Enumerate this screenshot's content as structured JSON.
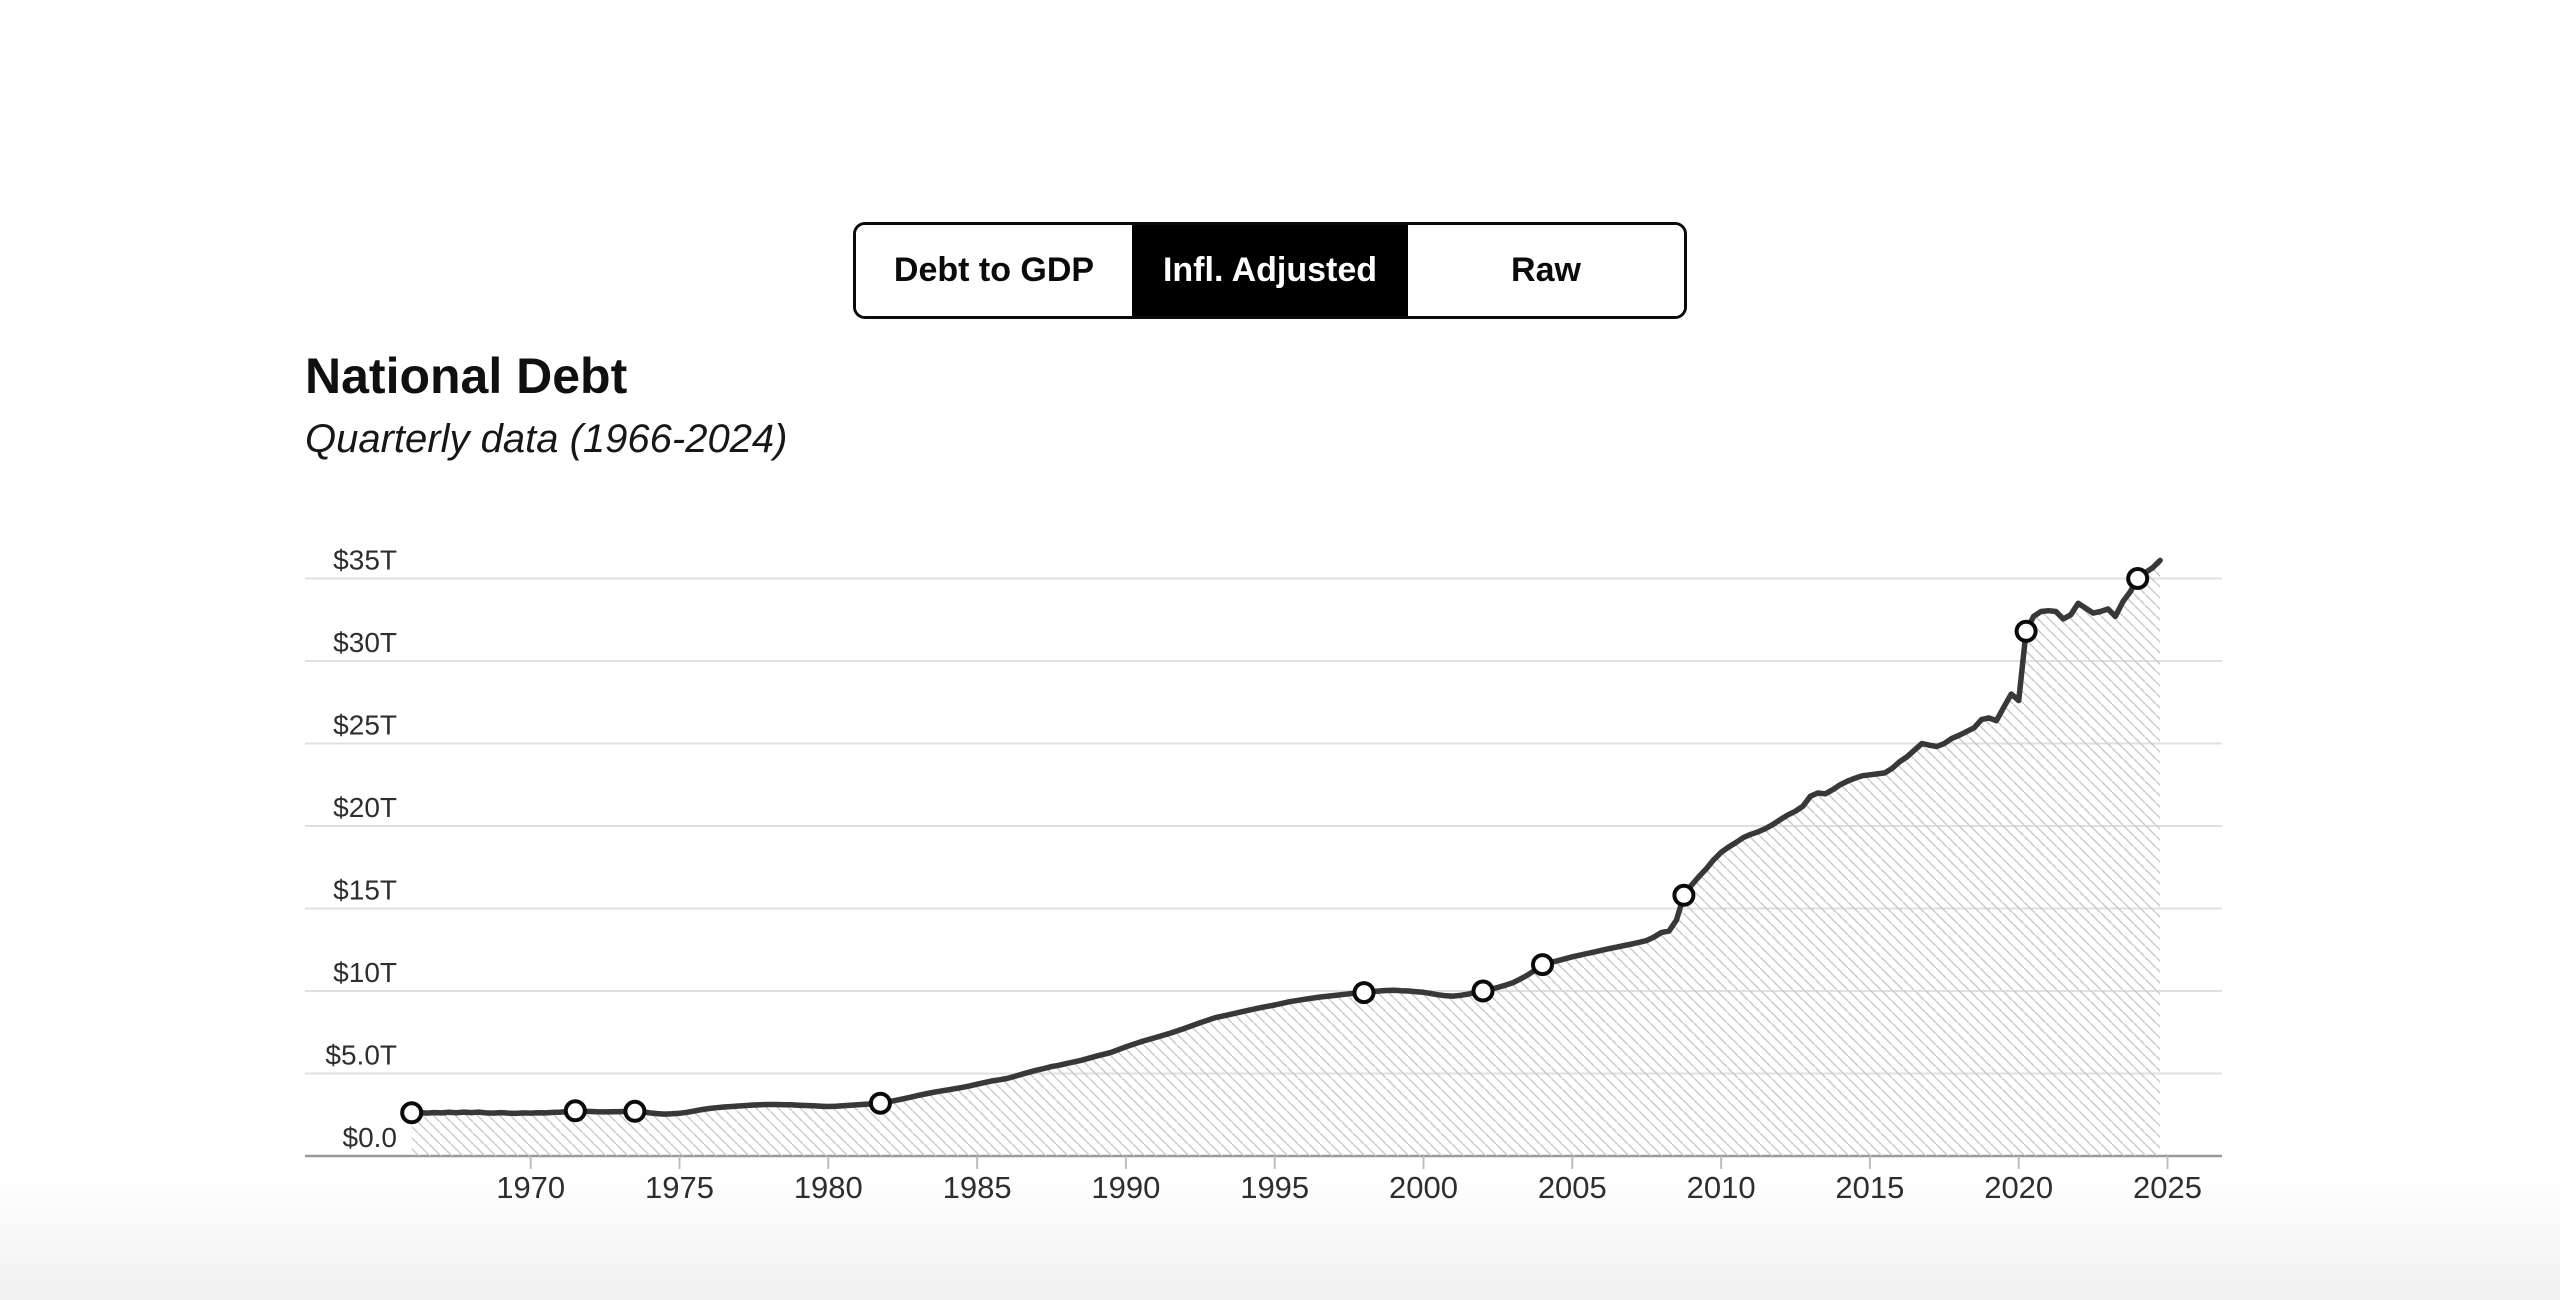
{
  "page": {
    "background": "#ffffff"
  },
  "toggle": {
    "items": [
      {
        "label": "Debt to GDP",
        "active": false
      },
      {
        "label": "Infl. Adjusted",
        "active": true
      },
      {
        "label": "Raw",
        "active": false
      }
    ]
  },
  "header": {
    "title": "National Debt",
    "subtitle": "Quarterly data (1966-2024)"
  },
  "chart_data": {
    "type": "area",
    "title": "National Debt",
    "subtitle": "Quarterly data (1966-2024)",
    "unit": "trillion USD (inflation adjusted)",
    "grid": true,
    "legend": false,
    "x_axis": {
      "tick_years": [
        1970,
        1975,
        1980,
        1985,
        1990,
        1995,
        2000,
        2005,
        2010,
        2015,
        2020,
        2025
      ],
      "range": [
        1966,
        2025.5
      ]
    },
    "y_axis": {
      "ticks": [
        {
          "value": 0,
          "label": "$0.0"
        },
        {
          "value": 5,
          "label": "$5.0T"
        },
        {
          "value": 10,
          "label": "$10T"
        },
        {
          "value": 15,
          "label": "$15T"
        },
        {
          "value": 20,
          "label": "$20T"
        },
        {
          "value": 25,
          "label": "$25T"
        },
        {
          "value": 30,
          "label": "$30T"
        },
        {
          "value": 35,
          "label": "$35T"
        }
      ],
      "range": [
        0,
        36.5
      ]
    },
    "series": [
      {
        "name": "National debt (inflation adjusted, $T)",
        "points": [
          [
            1966,
            2.62
          ],
          [
            1966.25,
            2.64
          ],
          [
            1966.5,
            2.6
          ],
          [
            1966.75,
            2.63
          ],
          [
            1967,
            2.61
          ],
          [
            1967.25,
            2.65
          ],
          [
            1967.5,
            2.62
          ],
          [
            1967.75,
            2.66
          ],
          [
            1968,
            2.63
          ],
          [
            1968.25,
            2.66
          ],
          [
            1968.5,
            2.61
          ],
          [
            1968.75,
            2.6
          ],
          [
            1969,
            2.63
          ],
          [
            1969.25,
            2.6
          ],
          [
            1969.5,
            2.58
          ],
          [
            1969.75,
            2.61
          ],
          [
            1970,
            2.6
          ],
          [
            1970.25,
            2.62
          ],
          [
            1970.5,
            2.61
          ],
          [
            1970.75,
            2.64
          ],
          [
            1971,
            2.66
          ],
          [
            1971.25,
            2.7
          ],
          [
            1971.5,
            2.74
          ],
          [
            1971.75,
            2.72
          ],
          [
            1972,
            2.7
          ],
          [
            1972.25,
            2.68
          ],
          [
            1972.5,
            2.67
          ],
          [
            1972.75,
            2.68
          ],
          [
            1973,
            2.69
          ],
          [
            1973.25,
            2.7
          ],
          [
            1973.5,
            2.71
          ],
          [
            1973.75,
            2.67
          ],
          [
            1974,
            2.61
          ],
          [
            1974.25,
            2.57
          ],
          [
            1974.5,
            2.54
          ],
          [
            1974.75,
            2.56
          ],
          [
            1975,
            2.59
          ],
          [
            1975.25,
            2.65
          ],
          [
            1975.5,
            2.73
          ],
          [
            1975.75,
            2.81
          ],
          [
            1976,
            2.88
          ],
          [
            1976.25,
            2.93
          ],
          [
            1976.5,
            2.97
          ],
          [
            1976.75,
            3.0
          ],
          [
            1977,
            3.03
          ],
          [
            1977.25,
            3.06
          ],
          [
            1977.5,
            3.09
          ],
          [
            1977.75,
            3.11
          ],
          [
            1978,
            3.12
          ],
          [
            1978.25,
            3.12
          ],
          [
            1978.5,
            3.11
          ],
          [
            1978.75,
            3.1
          ],
          [
            1979,
            3.08
          ],
          [
            1979.25,
            3.06
          ],
          [
            1979.5,
            3.04
          ],
          [
            1979.75,
            3.02
          ],
          [
            1980,
            3.0
          ],
          [
            1980.25,
            3.02
          ],
          [
            1980.5,
            3.05
          ],
          [
            1980.75,
            3.08
          ],
          [
            1981,
            3.11
          ],
          [
            1981.25,
            3.14
          ],
          [
            1981.5,
            3.17
          ],
          [
            1981.75,
            3.2
          ],
          [
            1982,
            3.28
          ],
          [
            1982.25,
            3.37
          ],
          [
            1982.5,
            3.46
          ],
          [
            1982.75,
            3.56
          ],
          [
            1983,
            3.66
          ],
          [
            1983.25,
            3.76
          ],
          [
            1983.5,
            3.85
          ],
          [
            1983.75,
            3.93
          ],
          [
            1984,
            4.0
          ],
          [
            1984.25,
            4.08
          ],
          [
            1984.5,
            4.16
          ],
          [
            1984.75,
            4.25
          ],
          [
            1985,
            4.35
          ],
          [
            1985.25,
            4.45
          ],
          [
            1985.5,
            4.55
          ],
          [
            1985.75,
            4.62
          ],
          [
            1986,
            4.7
          ],
          [
            1986.25,
            4.82
          ],
          [
            1986.5,
            4.95
          ],
          [
            1986.75,
            5.08
          ],
          [
            1987,
            5.2
          ],
          [
            1987.25,
            5.3
          ],
          [
            1987.5,
            5.42
          ],
          [
            1987.75,
            5.5
          ],
          [
            1988,
            5.6
          ],
          [
            1988.5,
            5.8
          ],
          [
            1989,
            6.05
          ],
          [
            1989.5,
            6.28
          ],
          [
            1990,
            6.62
          ],
          [
            1990.5,
            6.92
          ],
          [
            1991,
            7.18
          ],
          [
            1991.5,
            7.45
          ],
          [
            1992,
            7.75
          ],
          [
            1992.5,
            8.08
          ],
          [
            1993,
            8.38
          ],
          [
            1993.5,
            8.58
          ],
          [
            1994,
            8.78
          ],
          [
            1994.5,
            8.98
          ],
          [
            1995,
            9.15
          ],
          [
            1995.5,
            9.35
          ],
          [
            1996,
            9.5
          ],
          [
            1996.5,
            9.63
          ],
          [
            1997,
            9.73
          ],
          [
            1997.5,
            9.83
          ],
          [
            1998,
            9.9
          ],
          [
            1998.25,
            9.96
          ],
          [
            1998.5,
            10.0
          ],
          [
            1998.75,
            10.03
          ],
          [
            1999,
            10.05
          ],
          [
            1999.25,
            10.02
          ],
          [
            1999.5,
            10.0
          ],
          [
            1999.75,
            9.96
          ],
          [
            2000,
            9.92
          ],
          [
            2000.25,
            9.84
          ],
          [
            2000.5,
            9.77
          ],
          [
            2000.75,
            9.71
          ],
          [
            2001,
            9.69
          ],
          [
            2001.25,
            9.74
          ],
          [
            2001.5,
            9.81
          ],
          [
            2001.75,
            9.9
          ],
          [
            2002,
            10.0
          ],
          [
            2002.25,
            10.1
          ],
          [
            2002.5,
            10.22
          ],
          [
            2002.75,
            10.35
          ],
          [
            2003,
            10.5
          ],
          [
            2003.25,
            10.72
          ],
          [
            2003.5,
            10.97
          ],
          [
            2003.75,
            11.27
          ],
          [
            2004,
            11.6
          ],
          [
            2004.25,
            11.72
          ],
          [
            2004.5,
            11.83
          ],
          [
            2004.75,
            11.95
          ],
          [
            2005,
            12.07
          ],
          [
            2005.25,
            12.17
          ],
          [
            2005.5,
            12.27
          ],
          [
            2005.75,
            12.37
          ],
          [
            2006,
            12.47
          ],
          [
            2006.25,
            12.57
          ],
          [
            2006.5,
            12.66
          ],
          [
            2006.75,
            12.76
          ],
          [
            2007,
            12.85
          ],
          [
            2007.25,
            12.95
          ],
          [
            2007.5,
            13.06
          ],
          [
            2007.75,
            13.27
          ],
          [
            2008,
            13.55
          ],
          [
            2008.25,
            13.63
          ],
          [
            2008.5,
            14.3
          ],
          [
            2008.75,
            15.8
          ],
          [
            2009,
            16.4
          ],
          [
            2009.25,
            16.92
          ],
          [
            2009.5,
            17.4
          ],
          [
            2009.75,
            17.95
          ],
          [
            2010,
            18.4
          ],
          [
            2010.25,
            18.72
          ],
          [
            2010.5,
            19.0
          ],
          [
            2010.75,
            19.3
          ],
          [
            2011,
            19.5
          ],
          [
            2011.25,
            19.65
          ],
          [
            2011.5,
            19.85
          ],
          [
            2011.75,
            20.1
          ],
          [
            2012,
            20.4
          ],
          [
            2012.25,
            20.68
          ],
          [
            2012.5,
            20.9
          ],
          [
            2012.75,
            21.2
          ],
          [
            2013,
            21.8
          ],
          [
            2013.25,
            22.0
          ],
          [
            2013.5,
            21.95
          ],
          [
            2013.75,
            22.2
          ],
          [
            2014,
            22.5
          ],
          [
            2014.25,
            22.72
          ],
          [
            2014.5,
            22.9
          ],
          [
            2014.75,
            23.05
          ],
          [
            2015,
            23.1
          ],
          [
            2015.25,
            23.16
          ],
          [
            2015.5,
            23.22
          ],
          [
            2015.75,
            23.5
          ],
          [
            2016,
            23.9
          ],
          [
            2016.25,
            24.2
          ],
          [
            2016.5,
            24.6
          ],
          [
            2016.75,
            25.0
          ],
          [
            2017,
            24.9
          ],
          [
            2017.25,
            24.82
          ],
          [
            2017.5,
            25.0
          ],
          [
            2017.75,
            25.3
          ],
          [
            2018,
            25.5
          ],
          [
            2018.25,
            25.72
          ],
          [
            2018.5,
            25.95
          ],
          [
            2018.75,
            26.45
          ],
          [
            2019,
            26.55
          ],
          [
            2019.25,
            26.38
          ],
          [
            2019.5,
            27.2
          ],
          [
            2019.75,
            28.0
          ],
          [
            2020,
            27.6
          ],
          [
            2020.25,
            31.8
          ],
          [
            2020.5,
            32.7
          ],
          [
            2020.75,
            33.0
          ],
          [
            2021,
            33.05
          ],
          [
            2021.25,
            33.0
          ],
          [
            2021.5,
            32.55
          ],
          [
            2021.75,
            32.8
          ],
          [
            2022,
            33.5
          ],
          [
            2022.25,
            33.2
          ],
          [
            2022.5,
            32.9
          ],
          [
            2022.75,
            33.0
          ],
          [
            2023,
            33.15
          ],
          [
            2023.25,
            32.7
          ],
          [
            2023.5,
            33.6
          ],
          [
            2023.75,
            34.2
          ],
          [
            2024,
            35.0
          ],
          [
            2024.25,
            35.35
          ],
          [
            2024.5,
            35.65
          ],
          [
            2024.75,
            36.1
          ]
        ]
      }
    ],
    "markers": [
      [
        1966,
        2.62
      ],
      [
        1971.5,
        2.74
      ],
      [
        1973.5,
        2.71
      ],
      [
        1981.75,
        3.2
      ],
      [
        1998,
        9.9
      ],
      [
        2002,
        10.0
      ],
      [
        2004,
        11.6
      ],
      [
        2008.75,
        15.8
      ],
      [
        2020.25,
        31.8
      ],
      [
        2024,
        35.0
      ]
    ],
    "colors": {
      "line": "#383838",
      "marker_fill": "#ffffff",
      "marker_stroke": "#0b0b0b",
      "hatch": "#c9c9c9",
      "grid": "#e0e0e0",
      "axis": "#999999",
      "tick": "#bdbdbd",
      "axis_text": "#2e2e2e"
    }
  }
}
